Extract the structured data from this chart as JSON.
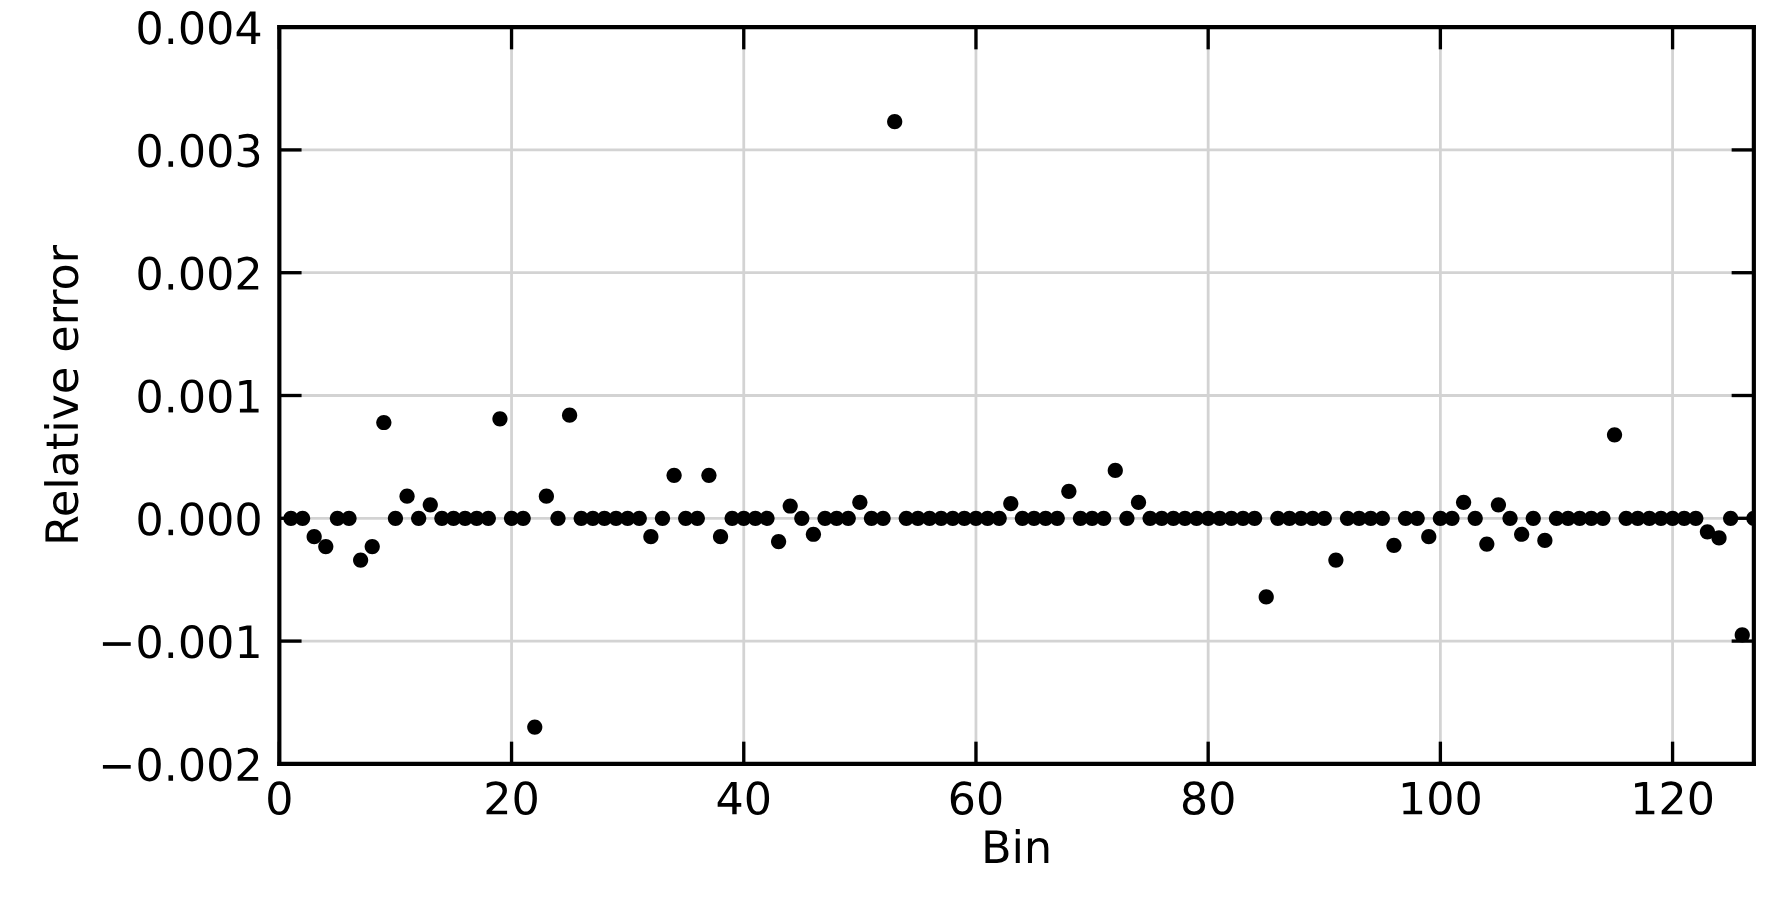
{
  "chart_data": {
    "type": "scatter",
    "xlabel": "Bin",
    "ylabel": "Relative error",
    "color": "#000000",
    "marker": "circle",
    "grid": true,
    "xlim": [
      0,
      127
    ],
    "xticks": [
      0,
      20,
      40,
      60,
      80,
      100,
      120
    ],
    "ylim": [
      -0.002,
      0.004
    ],
    "yticks": [
      {
        "value": -0.002,
        "label": "−0.002"
      },
      {
        "value": -0.001,
        "label": "−0.001"
      },
      {
        "value": 0,
        "label": "0.000"
      },
      {
        "value": 0.001,
        "label": "0.001"
      },
      {
        "value": 0.002,
        "label": "0.002"
      },
      {
        "value": 0.003,
        "label": "0.003"
      },
      {
        "value": 0.004,
        "label": "0.004"
      }
    ],
    "x": [
      1,
      2,
      3,
      4,
      5,
      6,
      7,
      8,
      9,
      10,
      11,
      12,
      13,
      14,
      15,
      16,
      17,
      18,
      19,
      20,
      21,
      22,
      23,
      24,
      25,
      26,
      27,
      28,
      29,
      30,
      31,
      32,
      33,
      34,
      35,
      36,
      37,
      38,
      39,
      40,
      41,
      42,
      43,
      44,
      45,
      46,
      47,
      48,
      49,
      50,
      51,
      52,
      53,
      54,
      55,
      56,
      57,
      58,
      59,
      60,
      61,
      62,
      63,
      64,
      65,
      66,
      67,
      68,
      69,
      70,
      71,
      72,
      73,
      74,
      75,
      76,
      77,
      78,
      79,
      80,
      81,
      82,
      83,
      84,
      85,
      86,
      87,
      88,
      89,
      90,
      91,
      92,
      93,
      94,
      95,
      96,
      97,
      98,
      99,
      100,
      101,
      102,
      103,
      104,
      105,
      106,
      107,
      108,
      109,
      110,
      111,
      112,
      113,
      114,
      115,
      116,
      117,
      118,
      119,
      120,
      121,
      122,
      123,
      124,
      125,
      126,
      127
    ],
    "values": [
      0,
      0,
      -0.00015,
      -0.00023,
      0,
      0,
      -0.00034,
      -0.00023,
      0.00078,
      0,
      0.00018,
      0,
      0.00011,
      0,
      0,
      0,
      0,
      0,
      0.00081,
      0,
      0,
      -0.0017,
      0.00018,
      0,
      0.00084,
      0,
      0,
      0,
      0,
      0,
      0,
      -0.00015,
      0,
      0.00035,
      0,
      0,
      0.00035,
      -0.00015,
      0,
      0,
      0,
      0,
      -0.00019,
      0.0001,
      0,
      -0.00013,
      0,
      0,
      0,
      0.00013,
      0,
      0,
      0.00323,
      0,
      0,
      0,
      0,
      0,
      0,
      0,
      0,
      0,
      0.00012,
      0,
      0,
      0,
      0,
      0.00022,
      0,
      0,
      0,
      0.00039,
      0,
      0.00013,
      0,
      0,
      0,
      0,
      0,
      0,
      0,
      0,
      0,
      0,
      -0.00064,
      0,
      0,
      0,
      0,
      0,
      -0.00034,
      0,
      0,
      0,
      0,
      -0.00022,
      0,
      0,
      -0.00015,
      0,
      0,
      0.00013,
      0,
      -0.00021,
      0.00011,
      0,
      -0.00013,
      0,
      -0.00018,
      0,
      0,
      0,
      0,
      0,
      0.00068,
      0,
      0,
      0,
      0,
      0,
      0,
      0,
      -0.00011,
      -0.00016,
      0,
      -0.00095,
      0
    ]
  }
}
